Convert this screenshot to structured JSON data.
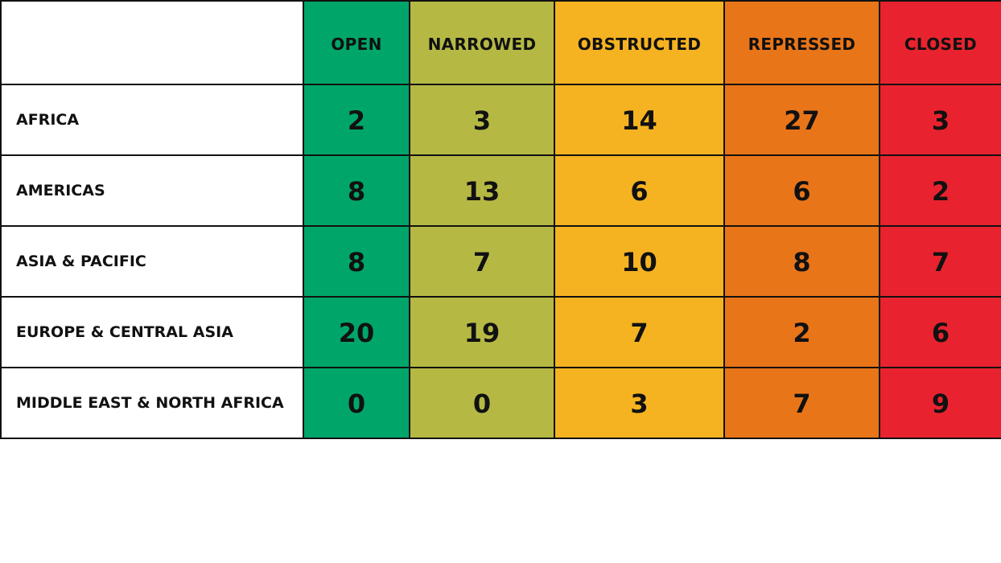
{
  "chart_data": {
    "type": "table",
    "columns": [
      {
        "label": "OPEN",
        "color": "#00a669"
      },
      {
        "label": "NARROWED",
        "color": "#b5b944"
      },
      {
        "label": "OBSTRUCTED",
        "color": "#f5b321"
      },
      {
        "label": "REPRESSED",
        "color": "#e97519"
      },
      {
        "label": "CLOSED",
        "color": "#e8232f"
      }
    ],
    "rows": [
      {
        "label": "AFRICA",
        "values": [
          2,
          3,
          14,
          27,
          3
        ]
      },
      {
        "label": "AMERICAS",
        "values": [
          8,
          13,
          6,
          6,
          2
        ]
      },
      {
        "label": "ASIA & PACIFIC",
        "values": [
          8,
          7,
          10,
          8,
          7
        ]
      },
      {
        "label": "EUROPE & CENTRAL ASIA",
        "values": [
          20,
          19,
          7,
          2,
          6
        ]
      },
      {
        "label": "MIDDLE EAST & NORTH AFRICA",
        "values": [
          0,
          0,
          3,
          7,
          9
        ]
      }
    ]
  }
}
